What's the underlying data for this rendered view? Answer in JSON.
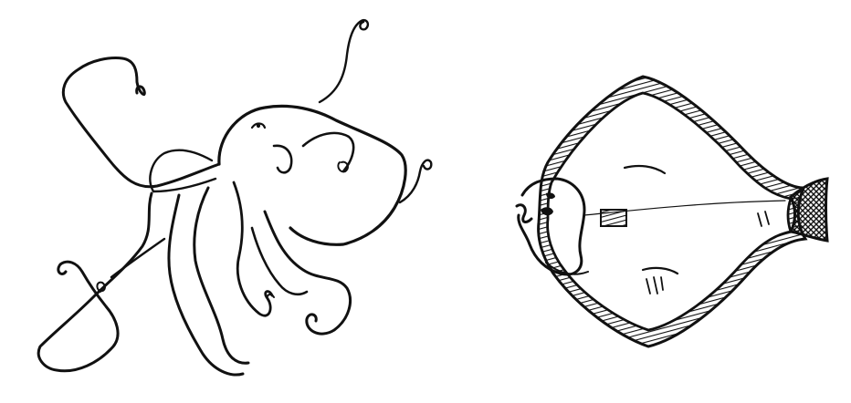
{
  "background_color": "#ffffff",
  "ink_color": "#111111",
  "illustrations": [
    {
      "subject": "octopus",
      "style": "brush-ink line drawing",
      "icon": "octopus-icon"
    },
    {
      "subject": "flatfish",
      "style": "brush-ink line drawing with hatched fin border",
      "icon": "flatfish-icon"
    }
  ]
}
